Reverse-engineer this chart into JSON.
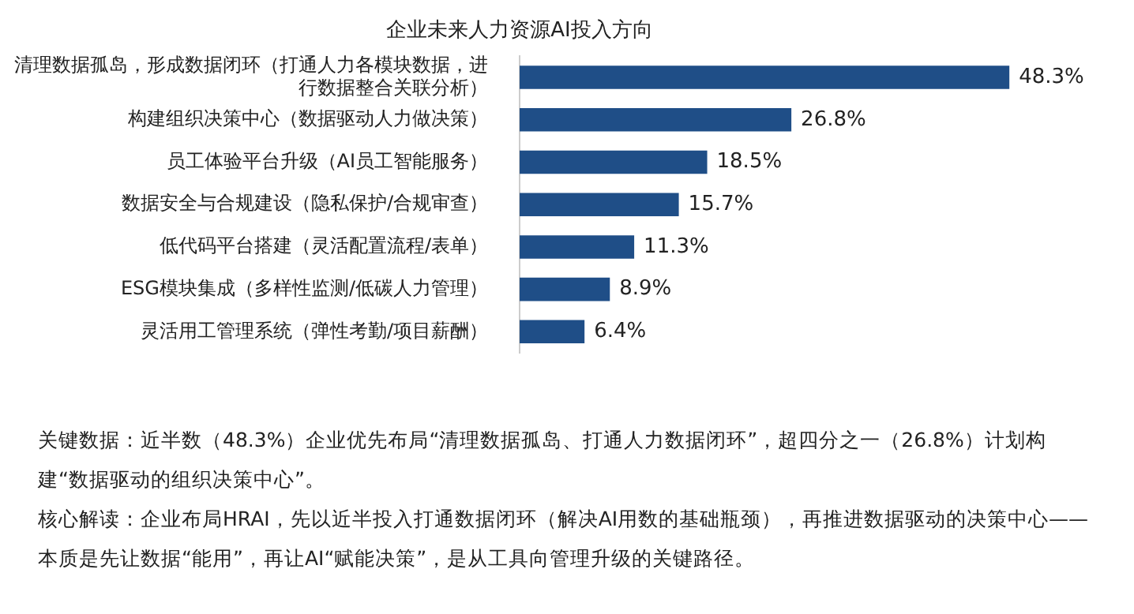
{
  "chart_data": {
    "type": "bar",
    "orientation": "horizontal",
    "title": "企业未来人力资源AI投入方向",
    "categories": [
      "清理数据孤岛，形成数据闭环（打通人力各模块数据，进行数据整合关联分析）",
      "构建组织决策中心（数据驱动人力做决策）",
      "员工体验平台升级（AI员工智能服务）",
      "数据安全与合规建设（隐私保护/合规审查）",
      "低代码平台搭建（灵活配置流程/表单）",
      "ESG模块集成（多样性监测/低碳人力管理）",
      "灵活用工管理系统（弹性考勤/项目薪酬）"
    ],
    "values": [
      48.3,
      26.8,
      18.5,
      15.7,
      11.3,
      8.9,
      6.4
    ],
    "value_labels": [
      "48.3%",
      "26.8%",
      "18.5%",
      "15.7%",
      "11.3%",
      "8.9%",
      "6.4%"
    ],
    "color": "#1f4e87",
    "annotations": [
      "关键数据：近半数（48.3%）企业优先布局“清理数据孤岛、打通人力数据闭环”，超四分之一（26.8%）计划构建“数据驱动的组织决策中心”。",
      "核心解读：企业布局HRAI，先以近半投入打通数据闭环（解决AI用数的基础瓶颈），再推进数据驱动的决策中心——本质是先让数据“能用”，再让AI“赋能决策”，是从工具向管理升级的关键路径。"
    ]
  }
}
